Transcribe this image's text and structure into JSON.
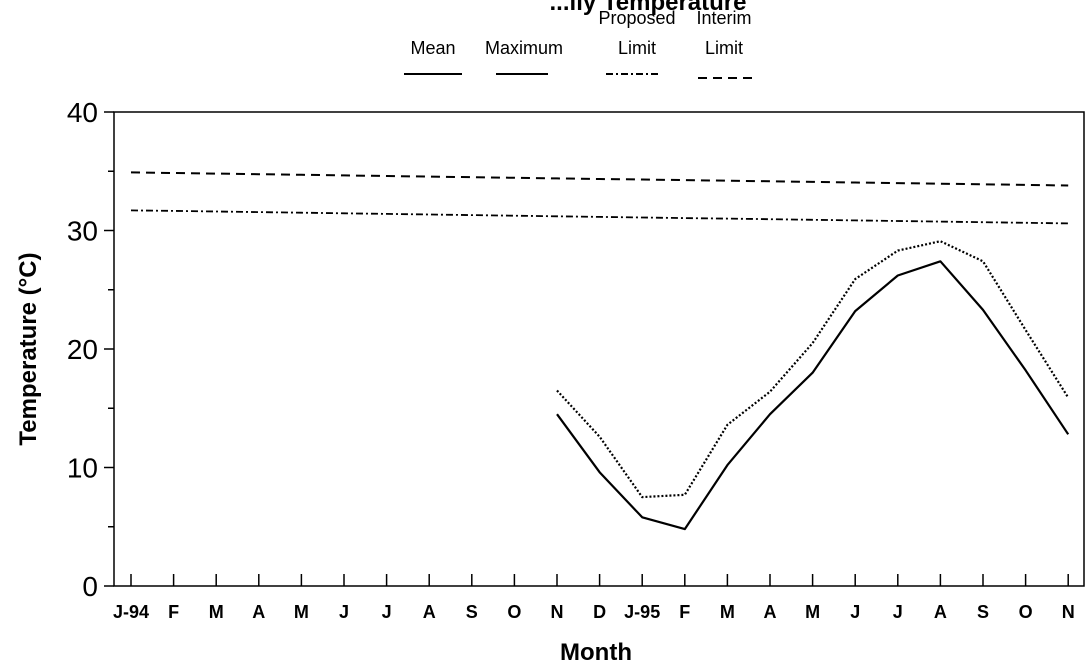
{
  "chart_data": {
    "type": "line",
    "title": "...ily Temperature",
    "xlabel": "Month",
    "ylabel": "Temperature (°C)",
    "ylim": [
      0,
      40
    ],
    "yticks": [
      "0",
      "10",
      "20",
      "30",
      "40"
    ],
    "categories": [
      "J-94",
      "F",
      "M",
      "A",
      "M",
      "J",
      "J",
      "A",
      "S",
      "O",
      "N",
      "D",
      "J-95",
      "F",
      "M",
      "A",
      "M",
      "J",
      "J",
      "A",
      "S",
      "O",
      "N"
    ],
    "legend": {
      "mean": "Mean",
      "maximum": "Maximum",
      "proposed_line1": "Proposed",
      "proposed_line2": "Limit",
      "interim_line1": "Interim",
      "interim_line2": "Limit"
    },
    "series": [
      {
        "name": "Mean",
        "style": "solid",
        "values": [
          null,
          null,
          null,
          null,
          null,
          null,
          null,
          null,
          null,
          null,
          14.5,
          9.6,
          5.8,
          4.8,
          10.2,
          14.5,
          18.0,
          23.2,
          26.2,
          27.4,
          23.3,
          18.2,
          12.8
        ]
      },
      {
        "name": "Maximum",
        "style": "dotted",
        "values": [
          null,
          null,
          null,
          null,
          null,
          null,
          null,
          null,
          null,
          null,
          16.5,
          12.6,
          7.5,
          7.7,
          13.6,
          16.4,
          20.5,
          25.9,
          28.3,
          29.1,
          27.4,
          21.6,
          15.9
        ]
      },
      {
        "name": "Proposed Limit",
        "style": "dashdot",
        "values": [
          31.7,
          31.65,
          31.6,
          31.55,
          31.5,
          31.45,
          31.4,
          31.35,
          31.3,
          31.25,
          31.2,
          31.15,
          31.1,
          31.05,
          31.0,
          30.95,
          30.9,
          30.85,
          30.8,
          30.75,
          30.7,
          30.65,
          30.6
        ]
      },
      {
        "name": "Interim Limit",
        "style": "dashed",
        "values": [
          34.9,
          34.85,
          34.8,
          34.75,
          34.7,
          34.65,
          34.6,
          34.55,
          34.5,
          34.45,
          34.4,
          34.35,
          34.3,
          34.25,
          34.2,
          34.15,
          34.1,
          34.05,
          34.0,
          33.95,
          33.9,
          33.85,
          33.8
        ]
      }
    ]
  }
}
